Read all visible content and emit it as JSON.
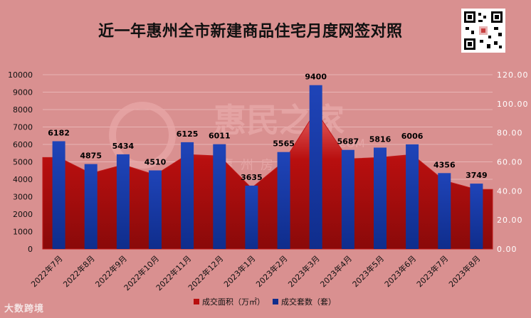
{
  "title": "近一年惠州全市新建商品住宅月度网签对照",
  "watermark": {
    "brand": "惠民之家",
    "domain": ".COM",
    "tagline": "惠州房产权威媒体"
  },
  "footer_logo": "大数跨境",
  "colors": {
    "area": "#b80f0f",
    "area_light": "#e86060",
    "bar": "#0f2d8c",
    "bar_light": "#1f44b8",
    "background": "#d99090",
    "grid": "#e8b4b4"
  },
  "chart_data": {
    "type": "bar",
    "categories": [
      "2022年7月",
      "2022年8月",
      "2022年9月",
      "2022年10月",
      "2022年11月",
      "2022年12月",
      "2023年1月",
      "2023年2月",
      "2023年3月",
      "2023年4月",
      "2023年5月",
      "2023年6月",
      "2023年7月",
      "2023年8月"
    ],
    "series": [
      {
        "name": "成交面积（万㎡）",
        "type": "area",
        "axis": "right",
        "values": [
          63,
          52,
          58,
          51,
          65,
          64,
          42,
          60,
          95,
          62,
          63,
          65,
          47,
          41
        ]
      },
      {
        "name": "成交套数（套）",
        "type": "bar",
        "axis": "left",
        "values": [
          6182,
          4875,
          5434,
          4510,
          6125,
          6011,
          3635,
          5565,
          9400,
          5687,
          5816,
          6006,
          4356,
          3749
        ]
      }
    ],
    "y_left": {
      "min": 0,
      "max": 10000,
      "ticks": [
        "0",
        "1000",
        "2000",
        "3000",
        "4000",
        "5000",
        "6000",
        "7000",
        "8000",
        "9000",
        "10000"
      ]
    },
    "y_right": {
      "min": 0,
      "max": 120,
      "ticks": [
        "0.00",
        "20.00",
        "40.00",
        "60.00",
        "80.00",
        "100.00",
        "120.00"
      ]
    },
    "legend": [
      "成交面积（万㎡）",
      "成交套数（套）"
    ],
    "legend_position": "bottom",
    "grid": true
  }
}
